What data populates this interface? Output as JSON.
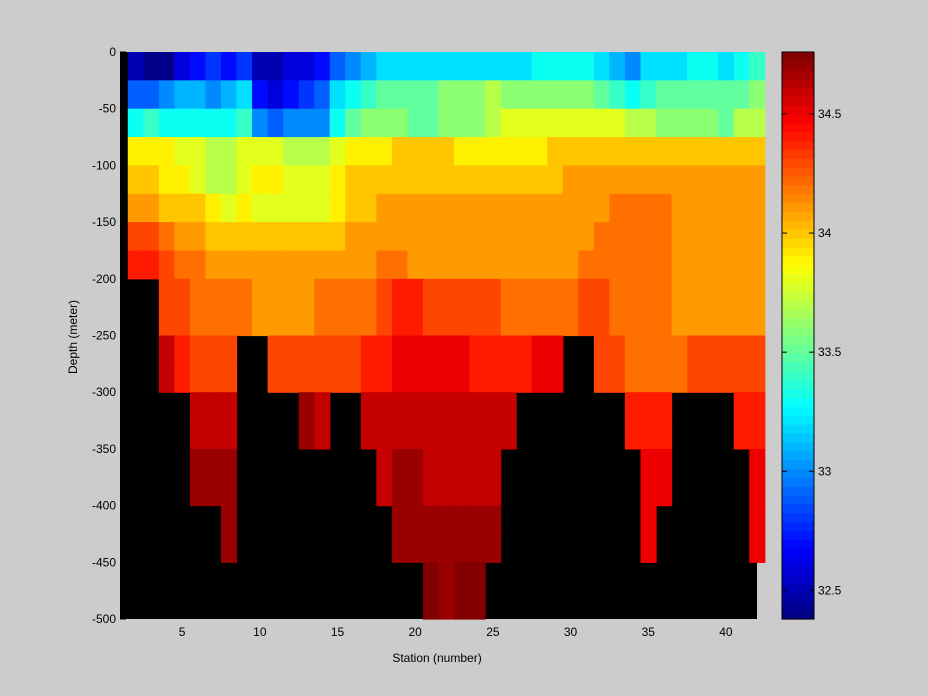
{
  "chart_data": {
    "type": "heatmap",
    "xlabel": "Station (number)",
    "ylabel": "Depth (meter)",
    "xlim": [
      1,
      42
    ],
    "ylim": [
      -500,
      0
    ],
    "x_ticks": [
      5,
      10,
      15,
      20,
      25,
      30,
      35,
      40
    ],
    "y_ticks": [
      0,
      -50,
      -100,
      -150,
      -200,
      -250,
      -300,
      -350,
      -400,
      -450,
      -500
    ],
    "colorbar": {
      "colormap": "jet",
      "clim": [
        32.38,
        34.76
      ],
      "ticks": [
        32.5,
        33,
        33.5,
        34,
        34.5
      ]
    },
    "no_data_color": "#000000",
    "stations": [
      2,
      3,
      4,
      5,
      6,
      7,
      8,
      9,
      10,
      11,
      12,
      13,
      14,
      15,
      16,
      17,
      18,
      19,
      20,
      21,
      22,
      23,
      24,
      25,
      26,
      27,
      28,
      29,
      30,
      31,
      32,
      33,
      34,
      35,
      36,
      37,
      38,
      39,
      40,
      41,
      42
    ],
    "depth_bins": [
      0,
      -25,
      -50,
      -75,
      -100,
      -125,
      -150,
      -175,
      -200,
      -225,
      -250,
      -275,
      -300,
      -325,
      -350,
      -375,
      -400,
      -425,
      -450,
      -475,
      -500
    ],
    "salinity_rows": [
      [
        32.5,
        32.4,
        32.4,
        32.6,
        32.7,
        32.8,
        32.7,
        32.8,
        32.5,
        32.5,
        32.6,
        32.6,
        32.7,
        32.9,
        33.0,
        33.1,
        33.2,
        33.2,
        33.2,
        33.2,
        33.2,
        33.2,
        33.2,
        33.2,
        33.2,
        33.2,
        33.3,
        33.3,
        33.3,
        33.3,
        33.2,
        33.1,
        33.0,
        33.2,
        33.2,
        33.2,
        33.3,
        33.3,
        33.2,
        33.3,
        33.4
      ],
      [
        32.9,
        32.9,
        33.0,
        33.1,
        33.1,
        33.0,
        33.1,
        33.2,
        32.7,
        32.6,
        32.7,
        32.8,
        32.9,
        33.2,
        33.3,
        33.4,
        33.5,
        33.5,
        33.5,
        33.5,
        33.6,
        33.6,
        33.6,
        33.7,
        33.6,
        33.6,
        33.6,
        33.6,
        33.6,
        33.6,
        33.5,
        33.4,
        33.3,
        33.4,
        33.5,
        33.5,
        33.5,
        33.5,
        33.5,
        33.5,
        33.6
      ],
      [
        33.3,
        33.4,
        33.3,
        33.3,
        33.3,
        33.3,
        33.3,
        33.4,
        33.0,
        32.9,
        33.0,
        33.0,
        33.0,
        33.3,
        33.5,
        33.6,
        33.6,
        33.6,
        33.5,
        33.5,
        33.6,
        33.6,
        33.6,
        33.7,
        33.8,
        33.8,
        33.8,
        33.8,
        33.8,
        33.8,
        33.8,
        33.8,
        33.7,
        33.7,
        33.6,
        33.6,
        33.6,
        33.6,
        33.5,
        33.7,
        33.7
      ],
      [
        33.9,
        33.9,
        33.9,
        33.8,
        33.8,
        33.7,
        33.7,
        33.8,
        33.8,
        33.8,
        33.7,
        33.7,
        33.7,
        33.8,
        33.9,
        33.9,
        33.9,
        34.0,
        34.0,
        34.0,
        34.0,
        33.9,
        33.9,
        33.9,
        33.9,
        33.9,
        33.9,
        34.0,
        34.0,
        34.0,
        34.0,
        34.0,
        34.0,
        34.0,
        34.0,
        34.0,
        34.0,
        34.0,
        34.0,
        34.0,
        34.0
      ],
      [
        34.0,
        34.0,
        33.9,
        33.9,
        33.8,
        33.7,
        33.7,
        33.8,
        33.9,
        33.9,
        33.8,
        33.8,
        33.8,
        33.9,
        34.0,
        34.0,
        34.0,
        34.0,
        34.0,
        34.0,
        34.0,
        34.0,
        34.0,
        34.0,
        34.0,
        34.0,
        34.0,
        34.0,
        34.1,
        34.1,
        34.1,
        34.1,
        34.1,
        34.1,
        34.1,
        34.1,
        34.1,
        34.1,
        34.1,
        34.1,
        34.1
      ],
      [
        34.1,
        34.1,
        34.0,
        34.0,
        34.0,
        33.9,
        33.8,
        33.9,
        33.8,
        33.8,
        33.8,
        33.8,
        33.8,
        33.9,
        34.0,
        34.0,
        34.1,
        34.1,
        34.1,
        34.1,
        34.1,
        34.1,
        34.1,
        34.1,
        34.1,
        34.1,
        34.1,
        34.1,
        34.1,
        34.1,
        34.1,
        34.2,
        34.2,
        34.2,
        34.2,
        34.1,
        34.1,
        34.1,
        34.1,
        34.1,
        34.1
      ],
      [
        34.3,
        34.3,
        34.2,
        34.1,
        34.1,
        34.0,
        34.0,
        34.0,
        34.0,
        34.0,
        34.0,
        34.0,
        34.0,
        34.0,
        34.1,
        34.1,
        34.1,
        34.1,
        34.1,
        34.1,
        34.1,
        34.1,
        34.1,
        34.1,
        34.1,
        34.1,
        34.1,
        34.1,
        34.1,
        34.1,
        34.2,
        34.2,
        34.2,
        34.2,
        34.2,
        34.1,
        34.1,
        34.1,
        34.1,
        34.1,
        34.1
      ],
      [
        34.4,
        34.4,
        34.3,
        34.2,
        34.2,
        34.1,
        34.1,
        34.1,
        34.1,
        34.1,
        34.1,
        34.1,
        34.1,
        34.1,
        34.1,
        34.1,
        34.2,
        34.2,
        34.1,
        34.1,
        34.1,
        34.1,
        34.1,
        34.1,
        34.1,
        34.1,
        34.1,
        34.1,
        34.1,
        34.2,
        34.2,
        34.2,
        34.2,
        34.2,
        34.2,
        34.1,
        34.1,
        34.1,
        34.1,
        34.1,
        34.1
      ],
      [
        null,
        null,
        34.3,
        34.3,
        34.2,
        34.2,
        34.2,
        34.2,
        34.1,
        34.1,
        34.1,
        34.1,
        34.2,
        34.2,
        34.2,
        34.2,
        34.3,
        34.4,
        34.4,
        34.3,
        34.3,
        34.3,
        34.3,
        34.3,
        34.2,
        34.2,
        34.2,
        34.2,
        34.2,
        34.3,
        34.3,
        34.2,
        34.2,
        34.2,
        34.2,
        34.1,
        34.1,
        34.1,
        34.1,
        34.1,
        34.1
      ],
      [
        null,
        null,
        34.3,
        34.3,
        34.2,
        34.2,
        34.2,
        34.2,
        34.1,
        34.1,
        34.1,
        34.1,
        34.2,
        34.2,
        34.2,
        34.2,
        34.3,
        34.4,
        34.4,
        34.3,
        34.3,
        34.3,
        34.3,
        34.3,
        34.2,
        34.2,
        34.2,
        34.2,
        34.2,
        34.3,
        34.3,
        34.2,
        34.2,
        34.2,
        34.2,
        34.1,
        34.1,
        34.1,
        34.1,
        34.1,
        34.1
      ],
      [
        null,
        null,
        34.6,
        34.4,
        34.3,
        34.3,
        34.3,
        null,
        null,
        34.3,
        34.3,
        34.3,
        34.3,
        34.3,
        34.3,
        34.4,
        34.4,
        34.5,
        34.5,
        34.5,
        34.5,
        34.5,
        34.4,
        34.4,
        34.4,
        34.4,
        34.5,
        34.5,
        null,
        null,
        34.3,
        34.3,
        34.2,
        34.2,
        34.2,
        34.2,
        34.3,
        34.3,
        34.3,
        34.3,
        34.3
      ],
      [
        null,
        null,
        34.6,
        34.4,
        34.3,
        34.3,
        34.3,
        null,
        null,
        34.3,
        34.3,
        34.3,
        34.3,
        34.3,
        34.3,
        34.4,
        34.4,
        34.5,
        34.5,
        34.5,
        34.5,
        34.5,
        34.4,
        34.4,
        34.4,
        34.4,
        34.5,
        34.5,
        null,
        null,
        34.3,
        34.3,
        34.2,
        34.2,
        34.2,
        34.2,
        34.3,
        34.3,
        34.3,
        34.3,
        34.3
      ],
      [
        null,
        null,
        null,
        null,
        34.6,
        34.6,
        34.6,
        null,
        null,
        null,
        null,
        34.7,
        34.6,
        null,
        null,
        34.6,
        34.6,
        34.6,
        34.6,
        34.6,
        34.6,
        34.6,
        34.6,
        34.6,
        34.6,
        null,
        null,
        null,
        null,
        null,
        null,
        null,
        34.4,
        34.4,
        34.4,
        null,
        null,
        null,
        null,
        34.4,
        34.4
      ],
      [
        null,
        null,
        null,
        null,
        34.6,
        34.6,
        34.6,
        null,
        null,
        null,
        null,
        34.7,
        34.6,
        null,
        null,
        34.6,
        34.6,
        34.6,
        34.6,
        34.6,
        34.6,
        34.6,
        34.6,
        34.6,
        34.6,
        null,
        null,
        null,
        null,
        null,
        null,
        null,
        34.4,
        34.4,
        34.4,
        null,
        null,
        null,
        null,
        34.4,
        34.4
      ],
      [
        null,
        null,
        null,
        null,
        34.7,
        34.7,
        34.7,
        null,
        null,
        null,
        null,
        null,
        null,
        null,
        null,
        null,
        34.6,
        34.7,
        34.7,
        34.6,
        34.6,
        34.6,
        34.6,
        34.6,
        null,
        null,
        null,
        null,
        null,
        null,
        null,
        null,
        null,
        34.5,
        34.5,
        null,
        null,
        null,
        null,
        null,
        34.5
      ],
      [
        null,
        null,
        null,
        null,
        34.7,
        34.7,
        34.7,
        null,
        null,
        null,
        null,
        null,
        null,
        null,
        null,
        null,
        34.6,
        34.7,
        34.7,
        34.6,
        34.6,
        34.6,
        34.6,
        34.6,
        null,
        null,
        null,
        null,
        null,
        null,
        null,
        null,
        null,
        34.5,
        34.5,
        null,
        null,
        null,
        null,
        null,
        34.5
      ],
      [
        null,
        null,
        null,
        null,
        null,
        null,
        34.7,
        null,
        null,
        null,
        null,
        null,
        null,
        null,
        null,
        null,
        null,
        34.7,
        34.7,
        34.7,
        34.7,
        34.7,
        34.7,
        34.7,
        null,
        null,
        null,
        null,
        null,
        null,
        null,
        null,
        null,
        34.5,
        null,
        null,
        null,
        null,
        null,
        null,
        34.5
      ],
      [
        null,
        null,
        null,
        null,
        null,
        null,
        34.7,
        null,
        null,
        null,
        null,
        null,
        null,
        null,
        null,
        null,
        null,
        34.7,
        34.7,
        34.7,
        34.7,
        34.7,
        34.7,
        34.7,
        null,
        null,
        null,
        null,
        null,
        null,
        null,
        null,
        null,
        34.5,
        null,
        null,
        null,
        null,
        null,
        null,
        34.5
      ],
      [
        null,
        null,
        null,
        null,
        null,
        null,
        null,
        null,
        null,
        null,
        null,
        null,
        null,
        null,
        null,
        null,
        null,
        null,
        null,
        34.75,
        34.7,
        34.75,
        34.75,
        null,
        null,
        null,
        null,
        null,
        null,
        null,
        null,
        null,
        null,
        null,
        null,
        null,
        null,
        null,
        null,
        null,
        null
      ],
      [
        null,
        null,
        null,
        null,
        null,
        null,
        null,
        null,
        null,
        null,
        null,
        null,
        null,
        null,
        null,
        null,
        null,
        null,
        null,
        34.75,
        34.7,
        34.75,
        34.75,
        null,
        null,
        null,
        null,
        null,
        null,
        null,
        null,
        null,
        null,
        null,
        null,
        null,
        null,
        null,
        null,
        null,
        null
      ]
    ]
  }
}
